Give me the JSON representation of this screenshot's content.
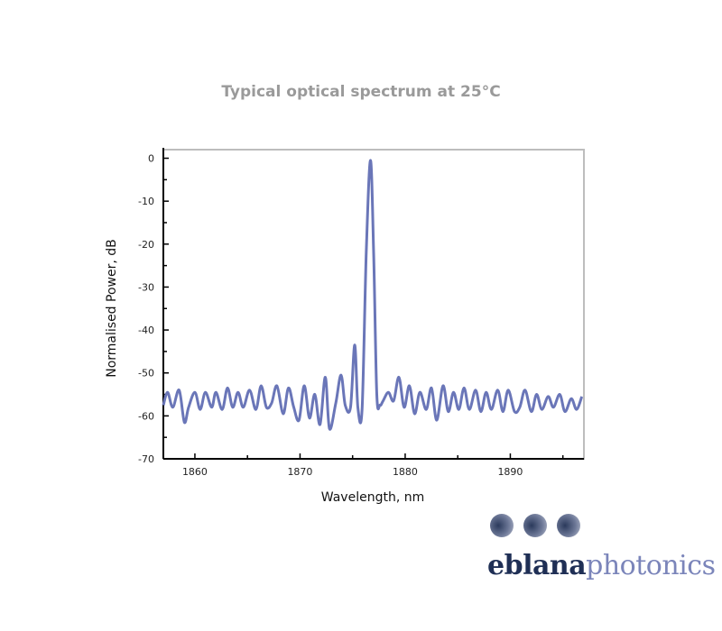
{
  "chart_data": {
    "type": "line",
    "title": "Typical optical spectrum at 25°C",
    "xlabel": "Wavelength, nm",
    "ylabel": "Normalised Power, dB",
    "xlim": [
      1857,
      1897
    ],
    "ylim": [
      -70,
      2
    ],
    "xticks": [
      1860,
      1870,
      1880,
      1890
    ],
    "yticks": [
      0,
      -10,
      -20,
      -30,
      -40,
      -50,
      -60,
      -70
    ],
    "grid": false,
    "line_color": "#6a76b8",
    "series": [
      {
        "x": [
          1857.0,
          1857.4,
          1857.9,
          1858.5,
          1859.0,
          1859.4,
          1860.0,
          1860.5,
          1861.0,
          1861.6,
          1862.0,
          1862.6,
          1863.1,
          1863.6,
          1864.1,
          1864.6,
          1865.2,
          1865.8,
          1866.3,
          1866.8,
          1867.3,
          1867.8,
          1868.4,
          1868.9,
          1869.4,
          1869.9,
          1870.4,
          1870.9,
          1871.4,
          1871.9,
          1872.4,
          1872.8,
          1873.4,
          1873.9,
          1874.3,
          1874.8,
          1875.2,
          1875.5,
          1875.9,
          1876.3,
          1876.7,
          1877.0,
          1877.3,
          1877.6,
          1877.9,
          1878.4,
          1878.9,
          1879.4,
          1879.9,
          1880.4,
          1880.9,
          1881.4,
          1882.0,
          1882.5,
          1883.0,
          1883.6,
          1884.1,
          1884.6,
          1885.1,
          1885.6,
          1886.1,
          1886.7,
          1887.2,
          1887.7,
          1888.2,
          1888.8,
          1889.3,
          1889.8,
          1890.4,
          1890.9,
          1891.4,
          1892.0,
          1892.5,
          1893.0,
          1893.6,
          1894.1,
          1894.7,
          1895.2,
          1895.8,
          1896.3,
          1896.8
        ],
        "y": [
          -57.5,
          -54.5,
          -58.0,
          -54.0,
          -61.5,
          -58.0,
          -54.5,
          -58.5,
          -54.5,
          -58.0,
          -54.5,
          -58.5,
          -53.5,
          -58.0,
          -54.5,
          -58.0,
          -54.0,
          -58.5,
          -53.0,
          -58.0,
          -57.0,
          -53.0,
          -59.5,
          -53.5,
          -58.0,
          -61.0,
          -53.0,
          -60.5,
          -55.0,
          -62.0,
          -51.0,
          -63.0,
          -57.0,
          -50.5,
          -57.5,
          -58.0,
          -43.5,
          -58.0,
          -58.5,
          -22.0,
          -0.5,
          -22.0,
          -55.0,
          -57.5,
          -56.5,
          -54.5,
          -56.5,
          -51.0,
          -58.0,
          -53.0,
          -59.5,
          -54.5,
          -58.5,
          -53.5,
          -61.0,
          -53.0,
          -59.0,
          -54.5,
          -58.5,
          -53.5,
          -58.5,
          -54.0,
          -59.0,
          -54.5,
          -58.5,
          -54.0,
          -59.0,
          -54.0,
          -59.0,
          -58.0,
          -54.0,
          -59.0,
          -55.0,
          -58.5,
          -55.5,
          -58.0,
          -55.0,
          -59.0,
          -56.0,
          -58.5,
          -55.5
        ]
      }
    ]
  },
  "logo": {
    "part1": "eblana",
    "part2": "photonics"
  }
}
